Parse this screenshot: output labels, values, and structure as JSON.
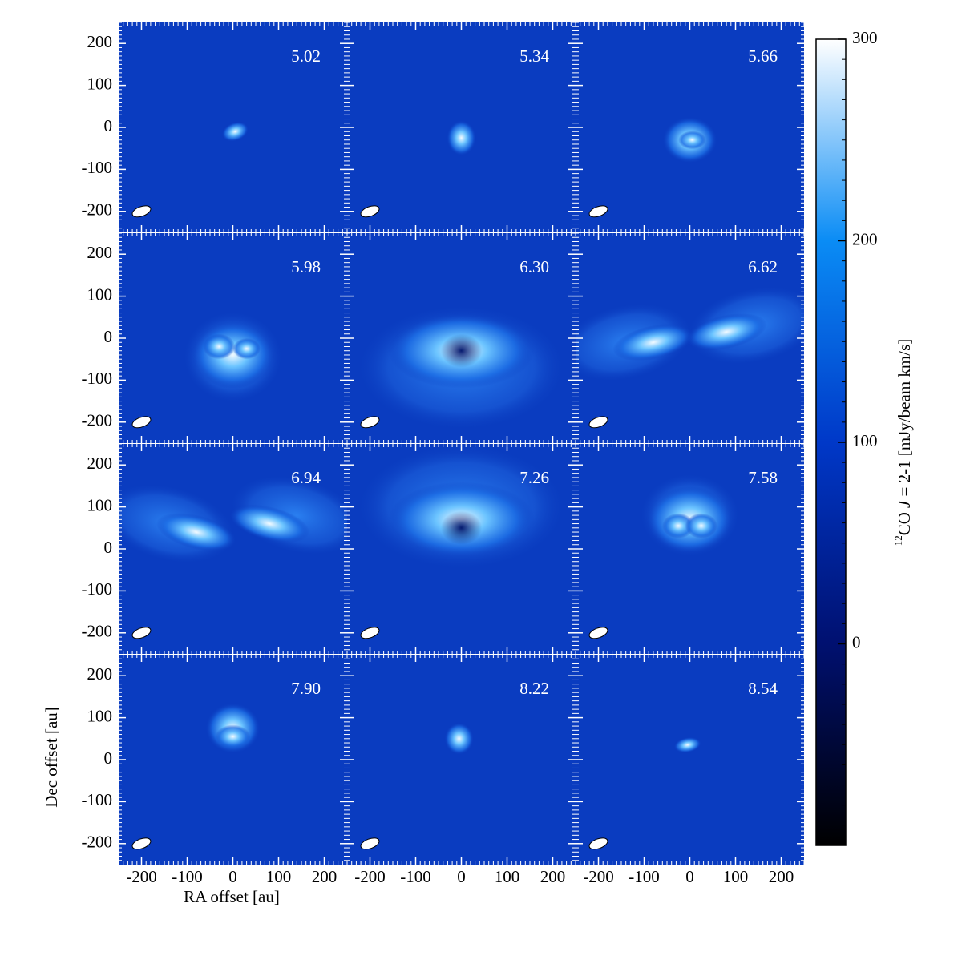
{
  "chart_data": {
    "type": "channel-map",
    "panels": [
      {
        "label": "5.02"
      },
      {
        "label": "5.34"
      },
      {
        "label": "5.66"
      },
      {
        "label": "5.98"
      },
      {
        "label": "6.30"
      },
      {
        "label": "6.62"
      },
      {
        "label": "6.94"
      },
      {
        "label": "7.26"
      },
      {
        "label": "7.58"
      },
      {
        "label": "7.90"
      },
      {
        "label": "8.22"
      },
      {
        "label": "8.54"
      }
    ],
    "xlabel": "RA offset [au]",
    "ylabel": "Dec offset [au]",
    "xlim": [
      -250,
      250
    ],
    "ylim": [
      -250,
      250
    ],
    "xticks": [
      -200,
      -100,
      0,
      100,
      200
    ],
    "yticks": [
      -200,
      -100,
      0,
      100,
      200
    ],
    "colorbar": {
      "label": {
        "isotope": "12",
        "molecule": "CO",
        "line": "J",
        "rest": " = 2-1 [mJy/beam km/s]"
      },
      "lim": [
        -100,
        300
      ],
      "ticks": [
        0,
        100,
        200,
        300
      ]
    }
  }
}
